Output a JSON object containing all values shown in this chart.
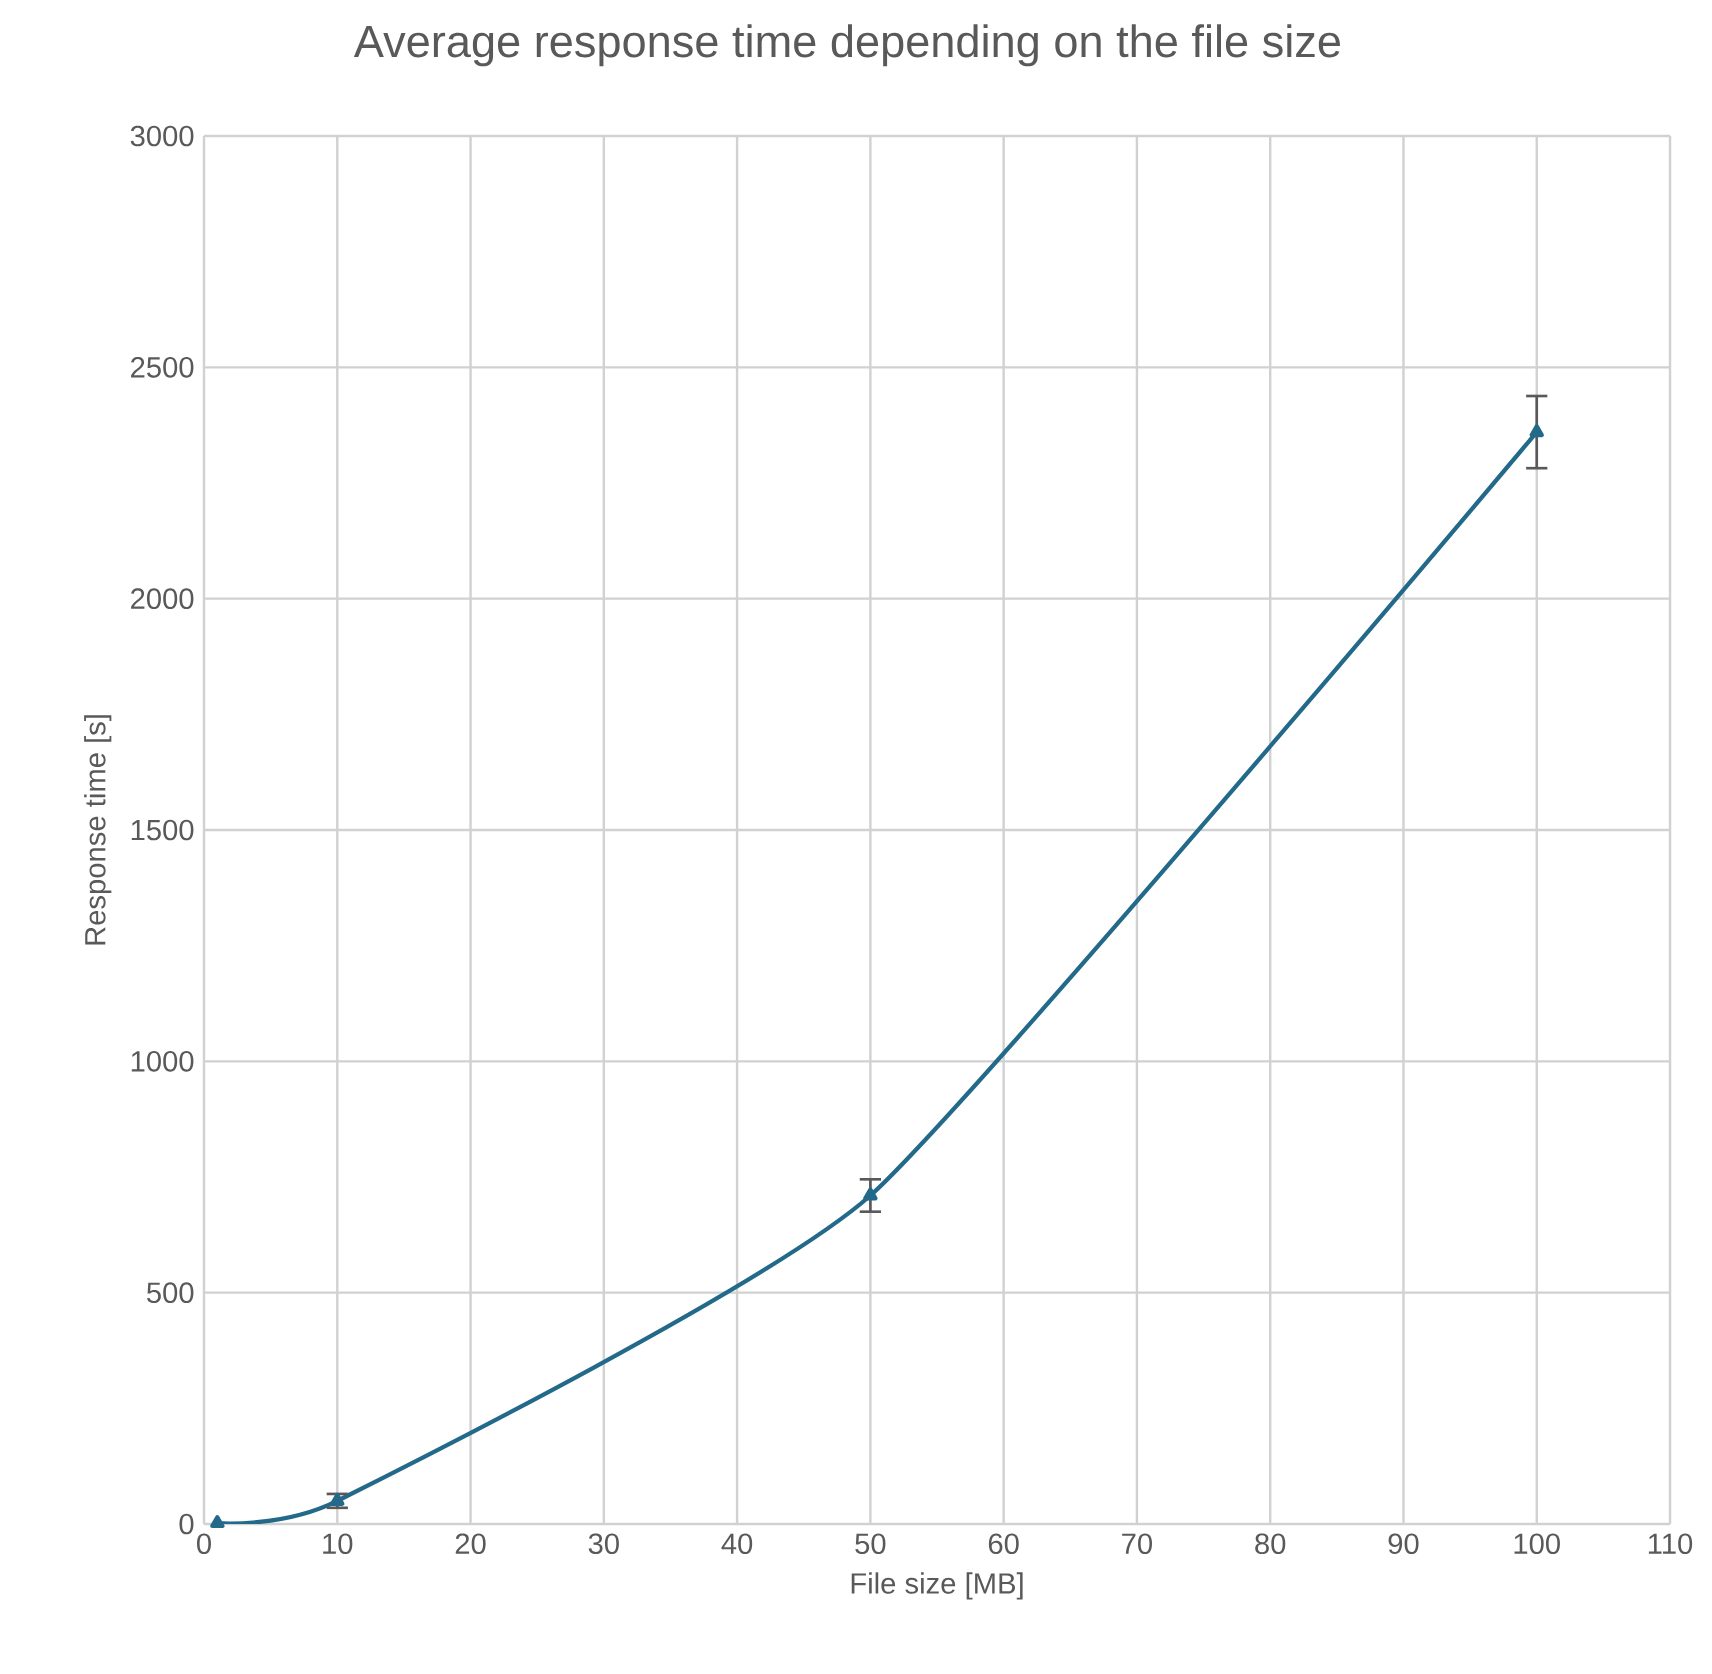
{
  "chart_data": {
    "type": "line",
    "title": "Average response time depending on the file size",
    "xlabel": "File size [MB]",
    "ylabel": "Response time [s]",
    "x": [
      1,
      10,
      50,
      100
    ],
    "series": [
      {
        "color": "#236a8a",
        "values": [
          2,
          50,
          710,
          2360
        ],
        "errors": [
          null,
          15,
          35,
          78
        ]
      }
    ],
    "xlim": [
      0,
      110
    ],
    "xticks": [
      0,
      10,
      20,
      30,
      40,
      50,
      60,
      70,
      80,
      90,
      100,
      110
    ],
    "ylim": [
      0,
      3000
    ],
    "yticks": [
      0,
      500,
      1000,
      1500,
      2000,
      2500,
      3000
    ],
    "grid": true,
    "marker": "triangle",
    "line_style": "solid"
  }
}
